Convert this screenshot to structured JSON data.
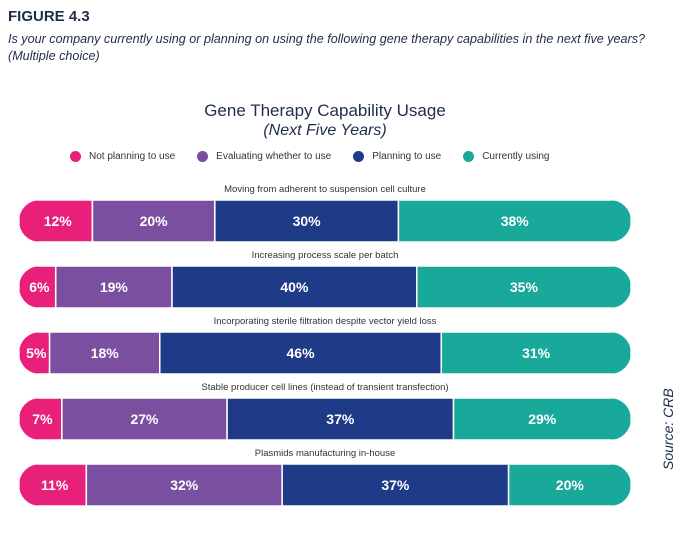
{
  "figure_label": "FIGURE 4.3",
  "question": "Is your company currently using or planning on using the following gene therapy capabilities in the next five years? (Multiple choice)",
  "source": "Source: CRB",
  "chart_data": {
    "type": "bar",
    "orientation": "horizontal",
    "stacked": true,
    "normalized": true,
    "title": "Gene Therapy Capability Usage",
    "subtitle": "(Next Five Years)",
    "legend_position": "top",
    "categories": [
      "Moving from adherent to suspension cell culture",
      "Increasing process scale per batch",
      "Incorporating sterile filtration despite vector yield loss",
      "Stable producer cell lines (instead of transient transfection)",
      "Plasmids manufacturing in-house"
    ],
    "series": [
      {
        "name": "Not planning to use",
        "color": "#e8207a",
        "values": [
          12,
          6,
          5,
          7,
          11
        ],
        "labels": [
          "12%",
          "6%",
          "5%",
          "7%",
          "11%"
        ]
      },
      {
        "name": "Evaluating whether to use",
        "color": "#7b4fa0",
        "values": [
          20,
          19,
          18,
          27,
          32
        ],
        "labels": [
          "20%",
          "19%",
          "18%",
          "27%",
          "32%"
        ]
      },
      {
        "name": "Planning to use",
        "color": "#1f3a86",
        "values": [
          30,
          40,
          46,
          37,
          37
        ],
        "labels": [
          "30%",
          "40%",
          "46%",
          "37%",
          "37%"
        ]
      },
      {
        "name": "Currently using",
        "color": "#19a99b",
        "values": [
          38,
          35,
          31,
          29,
          20
        ],
        "labels": [
          "38%",
          "35%",
          "31%",
          "29%",
          "20%"
        ]
      }
    ]
  }
}
